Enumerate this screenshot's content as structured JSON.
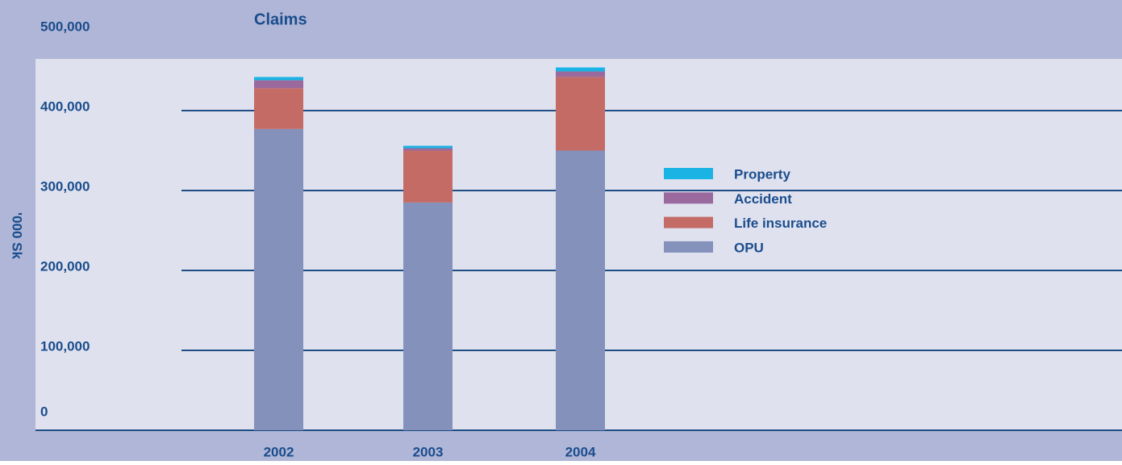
{
  "chart_data": {
    "type": "stacked_bar",
    "title": "Claims",
    "y_label": "'000 Sk",
    "categories": [
      "2002",
      "2003",
      "2004"
    ],
    "series": [
      {
        "name": "OPU",
        "color": "#8391bb",
        "values": [
          377000,
          285000,
          350000
        ]
      },
      {
        "name": "Life insurance",
        "color": "#c46b65",
        "values": [
          51000,
          65000,
          92000
        ]
      },
      {
        "name": "Accident",
        "color": "#9a6a9e",
        "values": [
          10000,
          3000,
          7000
        ]
      },
      {
        "name": "Property",
        "color": "#19b4e4",
        "values": [
          4000,
          3000,
          5000
        ]
      }
    ],
    "ylim": [
      0,
      500000
    ],
    "yticks": [
      0,
      {
        "value": 100000,
        "label": "100,000"
      },
      {
        "value": 200000,
        "label": "200,000"
      },
      {
        "value": 300000,
        "label": "300,000"
      },
      {
        "value": 400000,
        "label": "400,000"
      },
      {
        "value": 500000,
        "label": "500,000"
      }
    ],
    "grid": true,
    "legend": "right"
  }
}
